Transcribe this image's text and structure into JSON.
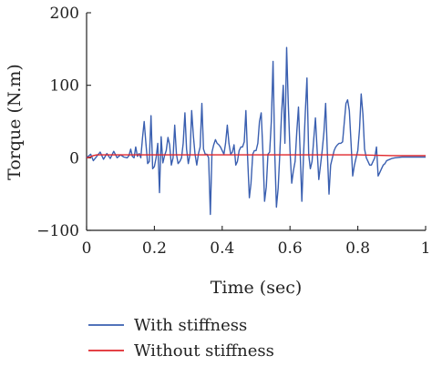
{
  "chart_data": {
    "type": "line",
    "xlabel": "Time (sec)",
    "ylabel": "Torque (N.m)",
    "xlim": [
      0,
      1
    ],
    "ylim": [
      -100,
      200
    ],
    "x_ticks": [
      0,
      0.2,
      0.4,
      0.6,
      0.8,
      1
    ],
    "x_tick_labels": [
      "0",
      "0.2",
      "0.4",
      "0.6",
      "0.8",
      "1"
    ],
    "y_ticks": [
      -100,
      0,
      100,
      200
    ],
    "y_tick_labels": [
      "−100",
      "0",
      "100",
      "200"
    ],
    "grid": false,
    "legend_position": "bottom",
    "series": [
      {
        "name": "With stiffness",
        "color": "#3a5fb0",
        "points": [
          [
            0.0,
            0
          ],
          [
            0.012,
            5
          ],
          [
            0.02,
            -4
          ],
          [
            0.03,
            2
          ],
          [
            0.04,
            8
          ],
          [
            0.05,
            -2
          ],
          [
            0.06,
            6
          ],
          [
            0.07,
            -1
          ],
          [
            0.08,
            9
          ],
          [
            0.09,
            0
          ],
          [
            0.1,
            4
          ],
          [
            0.11,
            1
          ],
          [
            0.12,
            0
          ],
          [
            0.125,
            3
          ],
          [
            0.13,
            12
          ],
          [
            0.135,
            2
          ],
          [
            0.14,
            0
          ],
          [
            0.145,
            15
          ],
          [
            0.15,
            2
          ],
          [
            0.155,
            6
          ],
          [
            0.16,
            0
          ],
          [
            0.165,
            28
          ],
          [
            0.17,
            50
          ],
          [
            0.175,
            20
          ],
          [
            0.18,
            -8
          ],
          [
            0.185,
            -5
          ],
          [
            0.19,
            58
          ],
          [
            0.195,
            -15
          ],
          [
            0.2,
            -12
          ],
          [
            0.205,
            0
          ],
          [
            0.21,
            20
          ],
          [
            0.215,
            -48
          ],
          [
            0.22,
            29
          ],
          [
            0.225,
            -7
          ],
          [
            0.23,
            3
          ],
          [
            0.235,
            10
          ],
          [
            0.24,
            28
          ],
          [
            0.245,
            18
          ],
          [
            0.25,
            -10
          ],
          [
            0.255,
            0
          ],
          [
            0.26,
            45
          ],
          [
            0.265,
            5
          ],
          [
            0.27,
            -8
          ],
          [
            0.275,
            -5
          ],
          [
            0.28,
            0
          ],
          [
            0.285,
            20
          ],
          [
            0.29,
            62
          ],
          [
            0.295,
            12
          ],
          [
            0.3,
            -8
          ],
          [
            0.305,
            5
          ],
          [
            0.31,
            65
          ],
          [
            0.315,
            30
          ],
          [
            0.32,
            5
          ],
          [
            0.325,
            -10
          ],
          [
            0.33,
            6
          ],
          [
            0.335,
            15
          ],
          [
            0.34,
            75
          ],
          [
            0.345,
            12
          ],
          [
            0.35,
            5
          ],
          [
            0.355,
            5
          ],
          [
            0.36,
            0
          ],
          [
            0.365,
            -78
          ],
          [
            0.37,
            8
          ],
          [
            0.375,
            18
          ],
          [
            0.38,
            25
          ],
          [
            0.385,
            20
          ],
          [
            0.39,
            18
          ],
          [
            0.395,
            15
          ],
          [
            0.4,
            10
          ],
          [
            0.405,
            5
          ],
          [
            0.41,
            20
          ],
          [
            0.415,
            45
          ],
          [
            0.42,
            20
          ],
          [
            0.425,
            5
          ],
          [
            0.43,
            8
          ],
          [
            0.435,
            18
          ],
          [
            0.44,
            -10
          ],
          [
            0.445,
            -5
          ],
          [
            0.45,
            10
          ],
          [
            0.455,
            15
          ],
          [
            0.46,
            15
          ],
          [
            0.465,
            22
          ],
          [
            0.47,
            65
          ],
          [
            0.475,
            0
          ],
          [
            0.48,
            -55
          ],
          [
            0.485,
            -35
          ],
          [
            0.49,
            5
          ],
          [
            0.495,
            10
          ],
          [
            0.5,
            10
          ],
          [
            0.505,
            20
          ],
          [
            0.51,
            50
          ],
          [
            0.515,
            62
          ],
          [
            0.52,
            10
          ],
          [
            0.525,
            -60
          ],
          [
            0.53,
            -40
          ],
          [
            0.535,
            5
          ],
          [
            0.54,
            8
          ],
          [
            0.545,
            50
          ],
          [
            0.55,
            133
          ],
          [
            0.555,
            5
          ],
          [
            0.56,
            -68
          ],
          [
            0.565,
            -42
          ],
          [
            0.57,
            5
          ],
          [
            0.575,
            60
          ],
          [
            0.58,
            100
          ],
          [
            0.585,
            20
          ],
          [
            0.59,
            152
          ],
          [
            0.595,
            75
          ],
          [
            0.6,
            10
          ],
          [
            0.605,
            -35
          ],
          [
            0.61,
            -18
          ],
          [
            0.615,
            -5
          ],
          [
            0.62,
            35
          ],
          [
            0.625,
            70
          ],
          [
            0.63,
            5
          ],
          [
            0.635,
            -60
          ],
          [
            0.64,
            5
          ],
          [
            0.645,
            60
          ],
          [
            0.65,
            110
          ],
          [
            0.655,
            5
          ],
          [
            0.66,
            -15
          ],
          [
            0.665,
            -5
          ],
          [
            0.67,
            25
          ],
          [
            0.675,
            55
          ],
          [
            0.68,
            10
          ],
          [
            0.685,
            -30
          ],
          [
            0.69,
            -10
          ],
          [
            0.695,
            10
          ],
          [
            0.7,
            35
          ],
          [
            0.705,
            75
          ],
          [
            0.71,
            10
          ],
          [
            0.715,
            -50
          ],
          [
            0.72,
            -10
          ],
          [
            0.725,
            0
          ],
          [
            0.73,
            10
          ],
          [
            0.735,
            15
          ],
          [
            0.74,
            18
          ],
          [
            0.745,
            20
          ],
          [
            0.75,
            20
          ],
          [
            0.755,
            22
          ],
          [
            0.76,
            48
          ],
          [
            0.765,
            75
          ],
          [
            0.77,
            80
          ],
          [
            0.775,
            65
          ],
          [
            0.78,
            20
          ],
          [
            0.785,
            -25
          ],
          [
            0.79,
            -10
          ],
          [
            0.795,
            0
          ],
          [
            0.8,
            10
          ],
          [
            0.805,
            40
          ],
          [
            0.81,
            88
          ],
          [
            0.815,
            60
          ],
          [
            0.82,
            12
          ],
          [
            0.825,
            0
          ],
          [
            0.83,
            -5
          ],
          [
            0.835,
            -10
          ],
          [
            0.84,
            -10
          ],
          [
            0.845,
            -5
          ],
          [
            0.85,
            0
          ],
          [
            0.855,
            15
          ],
          [
            0.86,
            -25
          ],
          [
            0.865,
            -20
          ],
          [
            0.87,
            -15
          ],
          [
            0.875,
            -10
          ],
          [
            0.88,
            -8
          ],
          [
            0.885,
            -4
          ],
          [
            0.89,
            -3
          ],
          [
            0.9,
            -1
          ],
          [
            0.91,
            0
          ],
          [
            0.93,
            1
          ],
          [
            0.95,
            1
          ],
          [
            1.0,
            1
          ]
        ]
      },
      {
        "name": "Without stiffness",
        "color": "#e0262b",
        "points": [
          [
            0.0,
            0
          ],
          [
            0.01,
            1
          ],
          [
            0.02,
            3
          ],
          [
            0.03,
            4
          ],
          [
            0.05,
            4
          ],
          [
            0.1,
            4
          ],
          [
            0.2,
            4
          ],
          [
            0.4,
            4
          ],
          [
            0.6,
            4
          ],
          [
            0.8,
            4
          ],
          [
            0.9,
            3
          ],
          [
            1.0,
            3
          ]
        ]
      }
    ]
  }
}
